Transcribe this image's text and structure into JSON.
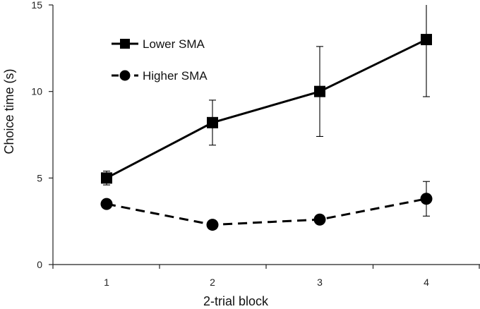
{
  "chart_data": {
    "type": "line",
    "title": "",
    "xlabel": "2-trial block",
    "ylabel": "Choice time (s)",
    "categories": [
      "1",
      "2",
      "3",
      "4"
    ],
    "ylim": [
      0,
      15
    ],
    "yticks": [
      0,
      5,
      10,
      15
    ],
    "grid": false,
    "legend_position": "top-left",
    "series": [
      {
        "name": "Lower SMA",
        "marker": "square",
        "line_style": "solid",
        "values": [
          5.0,
          8.2,
          10.0,
          13.0
        ],
        "error": [
          0.4,
          1.3,
          2.6,
          3.3
        ],
        "color": "#000000"
      },
      {
        "name": "Higher SMA",
        "marker": "circle",
        "line_style": "dashed",
        "values": [
          3.5,
          2.3,
          2.6,
          3.8
        ],
        "error": [
          0.0,
          0.0,
          0.0,
          1.0
        ],
        "color": "#000000"
      }
    ]
  }
}
